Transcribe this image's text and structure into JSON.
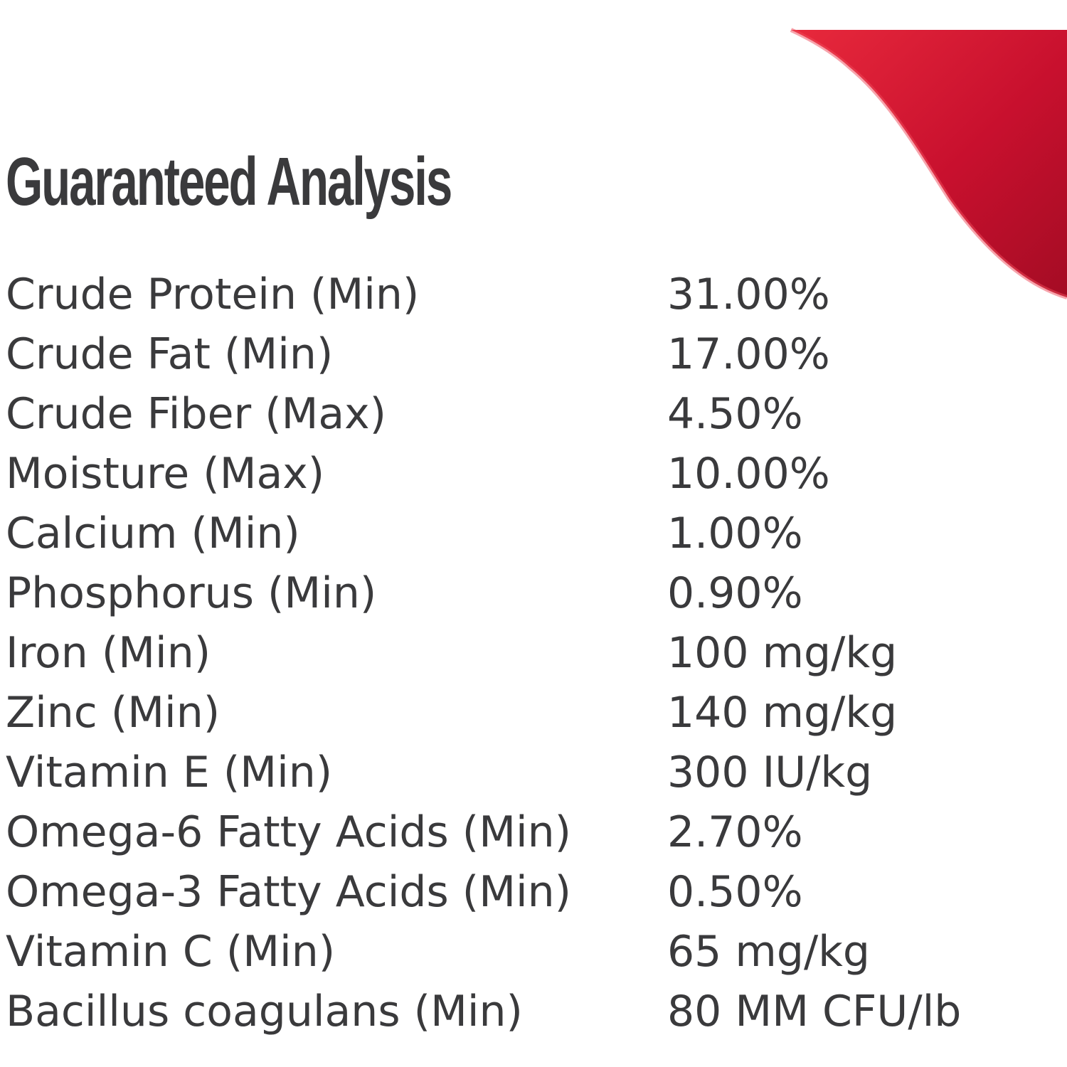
{
  "title": "Guaranteed Analysis",
  "accent_color": "#d3152b",
  "rows": [
    {
      "nutrient": "Crude Protein (Min)",
      "amount": "31.00%"
    },
    {
      "nutrient": "Crude Fat (Min)",
      "amount": "17.00%"
    },
    {
      "nutrient": "Crude Fiber (Max)",
      "amount": "4.50%"
    },
    {
      "nutrient": "Moisture (Max)",
      "amount": "10.00%"
    },
    {
      "nutrient": "Calcium (Min)",
      "amount": "1.00%"
    },
    {
      "nutrient": "Phosphorus (Min)",
      "amount": "0.90%"
    },
    {
      "nutrient": "Iron (Min)",
      "amount": "100 mg/kg"
    },
    {
      "nutrient": "Zinc (Min)",
      "amount": "140 mg/kg"
    },
    {
      "nutrient": "Vitamin E (Min)",
      "amount": "300 IU/kg"
    },
    {
      "nutrient": "Omega-6 Fatty Acids (Min)",
      "amount": "2.70%"
    },
    {
      "nutrient": "Omega-3 Fatty Acids (Min)",
      "amount": "0.50%"
    },
    {
      "nutrient": "Vitamin C (Min)",
      "amount": "65 mg/kg"
    },
    {
      "nutrient": "Bacillus coagulans (Min)",
      "amount": "80 MM CFU/lb"
    }
  ]
}
